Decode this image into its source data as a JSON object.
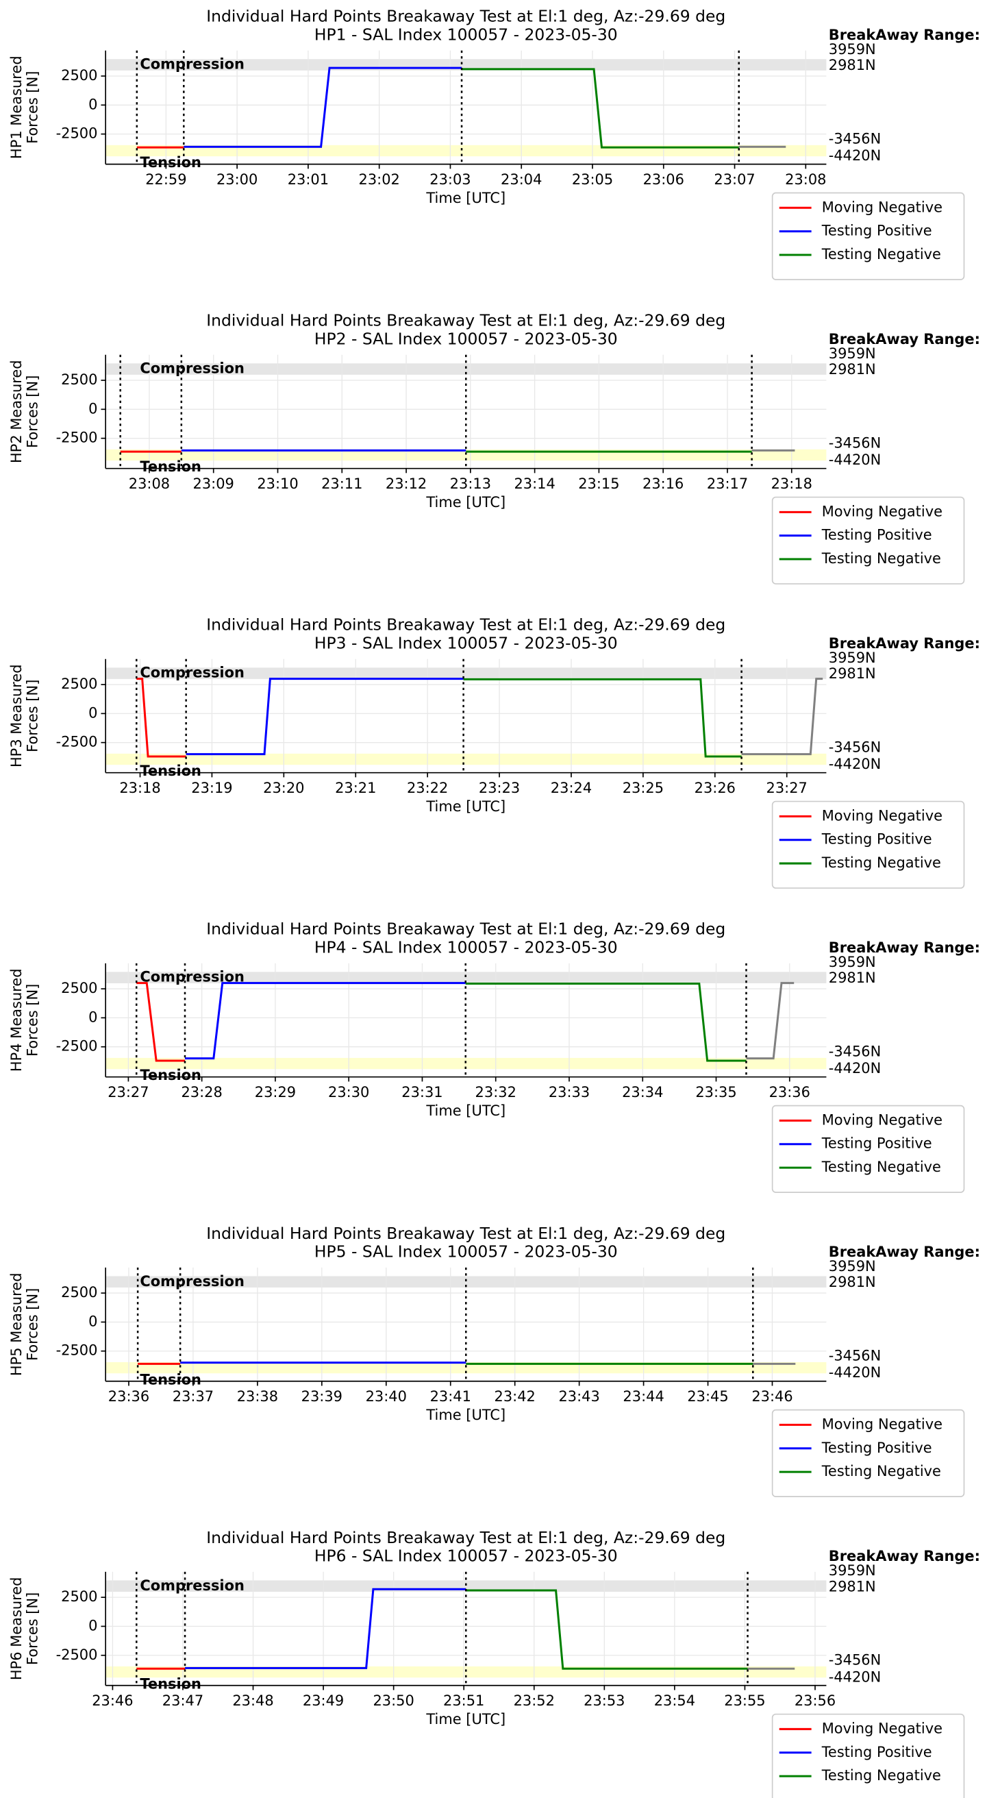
{
  "chart_data": [
    {
      "type": "line",
      "title": [
        "Individual Hard Points Breakaway Test at El:1 deg, Az:-29.69 deg",
        "HP1 - SAL Index 100057 - 2023-05-30"
      ],
      "ylabel": [
        "HP1 Measured",
        "Forces [N]"
      ],
      "xlabel": "Time [UTC]",
      "xlim": [
        1378.15,
        1388.29
      ],
      "xticks": [
        {
          "value": 1379,
          "label": "22:59"
        },
        {
          "value": 1380,
          "label": "23:00"
        },
        {
          "value": 1381,
          "label": "23:01"
        },
        {
          "value": 1382,
          "label": "23:02"
        },
        {
          "value": 1383,
          "label": "23:03"
        },
        {
          "value": 1384,
          "label": "23:04"
        },
        {
          "value": 1385,
          "label": "23:05"
        },
        {
          "value": 1386,
          "label": "23:06"
        },
        {
          "value": 1387,
          "label": "23:07"
        },
        {
          "value": 1388,
          "label": "23:08"
        }
      ],
      "ylim": [
        -5100,
        4700
      ],
      "yticks": [
        -2500,
        0,
        2500
      ],
      "grid": true,
      "legend": "below-right",
      "bands": [
        {
          "label": "Compression",
          "range": [
            2981,
            3959
          ],
          "color": "#e5e5e5"
        },
        {
          "label": "Tension",
          "range": [
            -4420,
            -3456
          ],
          "color": "#ffffcc"
        }
      ],
      "range_title": "BreakAway Range:",
      "range_labels": [
        {
          "value": 3959,
          "label": "3959N"
        },
        {
          "value": 2981,
          "label": "2981N"
        },
        {
          "value": -3456,
          "label": "-3456N"
        },
        {
          "value": -4420,
          "label": "-4420N"
        }
      ],
      "vlines": [
        1378.59,
        1379.25,
        1383.16,
        1387.06
      ],
      "series": [
        {
          "name": "Moving Negative",
          "color": "#ff0000",
          "x": [
            1378.59,
            1379.25
          ],
          "values": [
            -3650,
            -3650
          ]
        },
        {
          "name": "Testing Positive",
          "color": "#0000ff",
          "x": [
            1379.25,
            1381.18,
            1381.3,
            1383.16
          ],
          "values": [
            -3600,
            -3600,
            3200,
            3200
          ]
        },
        {
          "name": "Testing Negative",
          "color": "#008000",
          "x": [
            1383.16,
            1385.02,
            1385.13,
            1387.06
          ],
          "values": [
            3100,
            3100,
            -3650,
            -3650
          ]
        },
        {
          "color": "#808080",
          "x": [
            1387.06,
            1387.72
          ],
          "values": [
            -3600,
            -3600
          ]
        }
      ]
    },
    {
      "type": "line",
      "title": [
        "Individual Hard Points Breakaway Test at El:1 deg, Az:-29.69 deg",
        "HP2 - SAL Index 100057 - 2023-05-30"
      ],
      "ylabel": [
        "HP2 Measured",
        "Forces [N]"
      ],
      "xlabel": "Time [UTC]",
      "xlim": [
        1387.32,
        1398.54
      ],
      "xticks": [
        {
          "value": 1388,
          "label": "23:08"
        },
        {
          "value": 1389,
          "label": "23:09"
        },
        {
          "value": 1390,
          "label": "23:10"
        },
        {
          "value": 1391,
          "label": "23:11"
        },
        {
          "value": 1392,
          "label": "23:12"
        },
        {
          "value": 1393,
          "label": "23:13"
        },
        {
          "value": 1394,
          "label": "23:14"
        },
        {
          "value": 1395,
          "label": "23:15"
        },
        {
          "value": 1396,
          "label": "23:16"
        },
        {
          "value": 1397,
          "label": "23:17"
        },
        {
          "value": 1398,
          "label": "23:18"
        }
      ],
      "ylim": [
        -5100,
        4700
      ],
      "yticks": [
        -2500,
        0,
        2500
      ],
      "grid": true,
      "legend": "below-right",
      "bands": [
        {
          "label": "Compression",
          "range": [
            2981,
            3959
          ],
          "color": "#e5e5e5"
        },
        {
          "label": "Tension",
          "range": [
            -4420,
            -3456
          ],
          "color": "#ffffcc"
        }
      ],
      "range_title": "BreakAway Range:",
      "range_labels": [
        {
          "value": 3959,
          "label": "3959N"
        },
        {
          "value": 2981,
          "label": "2981N"
        },
        {
          "value": -3456,
          "label": "-3456N"
        },
        {
          "value": -4420,
          "label": "-4420N"
        }
      ],
      "vlines": [
        1387.55,
        1388.5,
        1392.93,
        1397.38
      ],
      "series": [
        {
          "name": "Moving Negative",
          "color": "#ff0000",
          "x": [
            1387.55,
            1388.5
          ],
          "values": [
            -3650,
            -3650
          ]
        },
        {
          "name": "Testing Positive",
          "color": "#0000ff",
          "x": [
            1388.5,
            1392.93
          ],
          "values": [
            -3550,
            -3550
          ]
        },
        {
          "name": "Testing Negative",
          "color": "#008000",
          "x": [
            1392.93,
            1397.38
          ],
          "values": [
            -3650,
            -3650
          ]
        },
        {
          "color": "#808080",
          "x": [
            1397.38,
            1398.05
          ],
          "values": [
            -3550,
            -3550
          ]
        }
      ]
    },
    {
      "type": "line",
      "title": [
        "Individual Hard Points Breakaway Test at El:1 deg, Az:-29.69 deg",
        "HP3 - SAL Index 100057 - 2023-05-30"
      ],
      "ylabel": [
        "HP3 Measured",
        "Forces [N]"
      ],
      "xlabel": "Time [UTC]",
      "xlim": [
        1397.52,
        1407.55
      ],
      "xticks": [
        {
          "value": 1398,
          "label": "23:18"
        },
        {
          "value": 1399,
          "label": "23:19"
        },
        {
          "value": 1400,
          "label": "23:20"
        },
        {
          "value": 1401,
          "label": "23:21"
        },
        {
          "value": 1402,
          "label": "23:22"
        },
        {
          "value": 1403,
          "label": "23:23"
        },
        {
          "value": 1404,
          "label": "23:24"
        },
        {
          "value": 1405,
          "label": "23:25"
        },
        {
          "value": 1406,
          "label": "23:26"
        },
        {
          "value": 1407,
          "label": "23:27"
        }
      ],
      "ylim": [
        -5100,
        4700
      ],
      "yticks": [
        -2500,
        0,
        2500
      ],
      "grid": true,
      "legend": "below-right",
      "bands": [
        {
          "label": "Compression",
          "range": [
            2981,
            3959
          ],
          "color": "#e5e5e5"
        },
        {
          "label": "Tension",
          "range": [
            -4420,
            -3456
          ],
          "color": "#ffffcc"
        }
      ],
      "range_title": "BreakAway Range:",
      "range_labels": [
        {
          "value": 3959,
          "label": "3959N"
        },
        {
          "value": 2981,
          "label": "2981N"
        },
        {
          "value": -3456,
          "label": "-3456N"
        },
        {
          "value": -4420,
          "label": "-4420N"
        }
      ],
      "vlines": [
        1397.95,
        1398.64,
        1402.5,
        1406.37
      ],
      "series": [
        {
          "name": "Moving Negative",
          "color": "#ff0000",
          "x": [
            1397.95,
            1398.03,
            1398.11,
            1398.64
          ],
          "values": [
            3000,
            3000,
            -3700,
            -3700
          ]
        },
        {
          "name": "Testing Positive",
          "color": "#0000ff",
          "x": [
            1398.64,
            1399.73,
            1399.81,
            1402.5
          ],
          "values": [
            -3500,
            -3500,
            3000,
            3000
          ]
        },
        {
          "name": "Testing Negative",
          "color": "#008000",
          "x": [
            1402.5,
            1405.8,
            1405.87,
            1406.37
          ],
          "values": [
            2950,
            2950,
            -3700,
            -3700
          ]
        },
        {
          "color": "#808080",
          "x": [
            1406.37,
            1407.33,
            1407.41,
            1407.5
          ],
          "values": [
            -3500,
            -3500,
            3000,
            3000
          ]
        }
      ]
    },
    {
      "type": "line",
      "title": [
        "Individual Hard Points Breakaway Test at El:1 deg, Az:-29.69 deg",
        "HP4 - SAL Index 100057 - 2023-05-30"
      ],
      "ylabel": [
        "HP4 Measured",
        "Forces [N]"
      ],
      "xlabel": "Time [UTC]",
      "xlim": [
        1406.69,
        1416.5
      ],
      "xticks": [
        {
          "value": 1407,
          "label": "23:27"
        },
        {
          "value": 1408,
          "label": "23:28"
        },
        {
          "value": 1409,
          "label": "23:29"
        },
        {
          "value": 1410,
          "label": "23:30"
        },
        {
          "value": 1411,
          "label": "23:31"
        },
        {
          "value": 1412,
          "label": "23:32"
        },
        {
          "value": 1413,
          "label": "23:33"
        },
        {
          "value": 1414,
          "label": "23:34"
        },
        {
          "value": 1415,
          "label": "23:35"
        },
        {
          "value": 1416,
          "label": "23:36"
        }
      ],
      "ylim": [
        -5100,
        4700
      ],
      "yticks": [
        -2500,
        0,
        2500
      ],
      "grid": true,
      "legend": "below-right",
      "bands": [
        {
          "label": "Compression",
          "range": [
            2981,
            3959
          ],
          "color": "#e5e5e5"
        },
        {
          "label": "Tension",
          "range": [
            -4420,
            -3456
          ],
          "color": "#ffffcc"
        }
      ],
      "range_title": "BreakAway Range:",
      "range_labels": [
        {
          "value": 3959,
          "label": "3959N"
        },
        {
          "value": 2981,
          "label": "2981N"
        },
        {
          "value": -3456,
          "label": "-3456N"
        },
        {
          "value": -4420,
          "label": "-4420N"
        }
      ],
      "vlines": [
        1407.11,
        1407.77,
        1411.59,
        1415.41
      ],
      "series": [
        {
          "name": "Moving Negative",
          "color": "#ff0000",
          "x": [
            1407.11,
            1407.25,
            1407.38,
            1407.77
          ],
          "values": [
            3000,
            3000,
            -3700,
            -3700
          ]
        },
        {
          "name": "Testing Positive",
          "color": "#0000ff",
          "x": [
            1407.77,
            1408.16,
            1408.28,
            1411.59
          ],
          "values": [
            -3500,
            -3500,
            3000,
            3000
          ]
        },
        {
          "name": "Testing Negative",
          "color": "#008000",
          "x": [
            1411.59,
            1414.77,
            1414.88,
            1415.41
          ],
          "values": [
            2950,
            2950,
            -3700,
            -3700
          ]
        },
        {
          "color": "#808080",
          "x": [
            1415.41,
            1415.78,
            1415.89,
            1416.06
          ],
          "values": [
            -3500,
            -3500,
            3000,
            3000
          ]
        }
      ]
    },
    {
      "type": "line",
      "title": [
        "Individual Hard Points Breakaway Test at El:1 deg, Az:-29.69 deg",
        "HP5 - SAL Index 100057 - 2023-05-30"
      ],
      "ylabel": [
        "HP5 Measured",
        "Forces [N]"
      ],
      "xlabel": "Time [UTC]",
      "xlim": [
        1415.64,
        1426.84
      ],
      "xticks": [
        {
          "value": 1416,
          "label": "23:36"
        },
        {
          "value": 1417,
          "label": "23:37"
        },
        {
          "value": 1418,
          "label": "23:38"
        },
        {
          "value": 1419,
          "label": "23:39"
        },
        {
          "value": 1420,
          "label": "23:40"
        },
        {
          "value": 1421,
          "label": "23:41"
        },
        {
          "value": 1422,
          "label": "23:42"
        },
        {
          "value": 1423,
          "label": "23:43"
        },
        {
          "value": 1424,
          "label": "23:44"
        },
        {
          "value": 1425,
          "label": "23:45"
        },
        {
          "value": 1426,
          "label": "23:46"
        }
      ],
      "ylim": [
        -5100,
        4700
      ],
      "yticks": [
        -2500,
        0,
        2500
      ],
      "grid": true,
      "legend": "below-right",
      "bands": [
        {
          "label": "Compression",
          "range": [
            2981,
            3959
          ],
          "color": "#e5e5e5"
        },
        {
          "label": "Tension",
          "range": [
            -4420,
            -3456
          ],
          "color": "#ffffcc"
        }
      ],
      "range_title": "BreakAway Range:",
      "range_labels": [
        {
          "value": 3959,
          "label": "3959N"
        },
        {
          "value": 2981,
          "label": "2981N"
        },
        {
          "value": -3456,
          "label": "-3456N"
        },
        {
          "value": -4420,
          "label": "-4420N"
        }
      ],
      "vlines": [
        1416.14,
        1416.8,
        1421.24,
        1425.7
      ],
      "series": [
        {
          "name": "Moving Negative",
          "color": "#ff0000",
          "x": [
            1416.14,
            1416.8
          ],
          "values": [
            -3600,
            -3600
          ]
        },
        {
          "name": "Testing Positive",
          "color": "#0000ff",
          "x": [
            1416.8,
            1421.24
          ],
          "values": [
            -3500,
            -3500
          ]
        },
        {
          "name": "Testing Negative",
          "color": "#008000",
          "x": [
            1421.24,
            1425.7
          ],
          "values": [
            -3600,
            -3600
          ]
        },
        {
          "color": "#808080",
          "x": [
            1425.7,
            1426.36
          ],
          "values": [
            -3600,
            -3600
          ]
        }
      ]
    },
    {
      "type": "line",
      "title": [
        "Individual Hard Points Breakaway Test at El:1 deg, Az:-29.69 deg",
        "HP6 - SAL Index 100057 - 2023-05-30"
      ],
      "ylabel": [
        "HP6 Measured",
        "Forces [N]"
      ],
      "xlabel": "Time [UTC]",
      "xlim": [
        1425.9,
        1436.16
      ],
      "xticks": [
        {
          "value": 1426,
          "label": "23:46"
        },
        {
          "value": 1427,
          "label": "23:47"
        },
        {
          "value": 1428,
          "label": "23:48"
        },
        {
          "value": 1429,
          "label": "23:49"
        },
        {
          "value": 1430,
          "label": "23:50"
        },
        {
          "value": 1431,
          "label": "23:51"
        },
        {
          "value": 1432,
          "label": "23:52"
        },
        {
          "value": 1433,
          "label": "23:53"
        },
        {
          "value": 1434,
          "label": "23:54"
        },
        {
          "value": 1435,
          "label": "23:55"
        },
        {
          "value": 1436,
          "label": "23:56"
        }
      ],
      "ylim": [
        -5100,
        4700
      ],
      "yticks": [
        -2500,
        0,
        2500
      ],
      "grid": true,
      "legend": "below-right",
      "bands": [
        {
          "label": "Compression",
          "range": [
            2981,
            3959
          ],
          "color": "#e5e5e5"
        },
        {
          "label": "Tension",
          "range": [
            -4420,
            -3456
          ],
          "color": "#ffffcc"
        }
      ],
      "range_title": "BreakAway Range:",
      "range_labels": [
        {
          "value": 3959,
          "label": "3959N"
        },
        {
          "value": 2981,
          "label": "2981N"
        },
        {
          "value": -3456,
          "label": "-3456N"
        },
        {
          "value": -4420,
          "label": "-4420N"
        }
      ],
      "vlines": [
        1426.34,
        1427.03,
        1431.03,
        1435.04
      ],
      "series": [
        {
          "name": "Moving Negative",
          "color": "#ff0000",
          "x": [
            1426.34,
            1427.03
          ],
          "values": [
            -3650,
            -3650
          ]
        },
        {
          "name": "Testing Positive",
          "color": "#0000ff",
          "x": [
            1427.03,
            1429.61,
            1429.71,
            1431.03
          ],
          "values": [
            -3600,
            -3600,
            3200,
            3200
          ]
        },
        {
          "name": "Testing Negative",
          "color": "#008000",
          "x": [
            1431.03,
            1432.31,
            1432.41,
            1435.04
          ],
          "values": [
            3100,
            3100,
            -3650,
            -3650
          ]
        },
        {
          "color": "#808080",
          "x": [
            1435.04,
            1435.71
          ],
          "values": [
            -3650,
            -3650
          ]
        }
      ]
    }
  ]
}
